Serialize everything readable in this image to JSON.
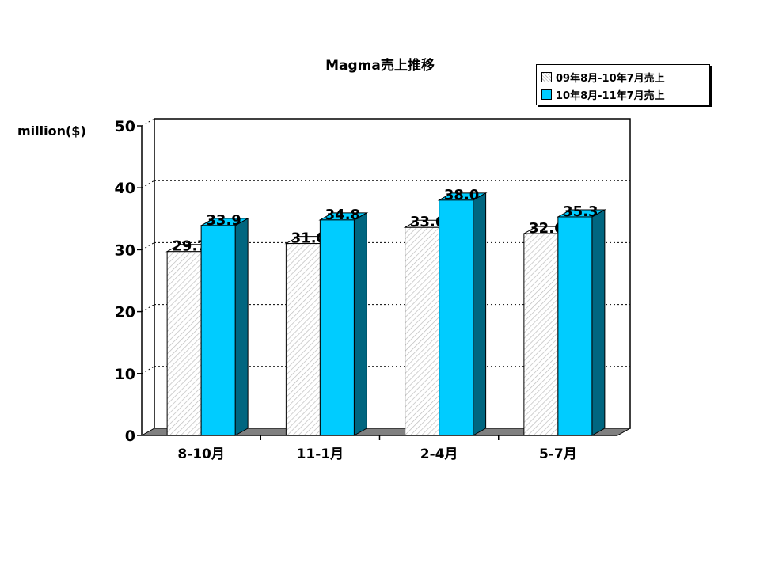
{
  "chart_data": {
    "type": "bar",
    "title": "Magma売上推移",
    "ylabel": "million($)",
    "xlabel": "",
    "categories": [
      "8-10月",
      "11-1月",
      "2-4月",
      "5-7月"
    ],
    "series": [
      {
        "name": "09年8月-10年7月売上",
        "values": [
          29.7,
          31.0,
          33.6,
          32.6
        ],
        "labels": [
          "29.7",
          "31.0",
          "33.6",
          "32.6"
        ]
      },
      {
        "name": "10年8月-11年7月売上",
        "values": [
          33.9,
          34.8,
          38.0,
          35.3
        ],
        "labels": [
          "33.9",
          "34.8",
          "38.0",
          "35.3"
        ]
      }
    ],
    "ylim": [
      0,
      50
    ],
    "yticks": [
      0,
      10,
      20,
      30,
      40,
      50
    ],
    "grid": true,
    "legend_position": "top-right",
    "style": "3d-clustered-bar",
    "colors": {
      "series1_fill": "#ffffff",
      "series1_hatch": "#bdbdbd",
      "series1_side": "#9a9a9a",
      "series2_fill": "#00ccff",
      "series2_side": "#006680",
      "floor": "#808080"
    }
  }
}
